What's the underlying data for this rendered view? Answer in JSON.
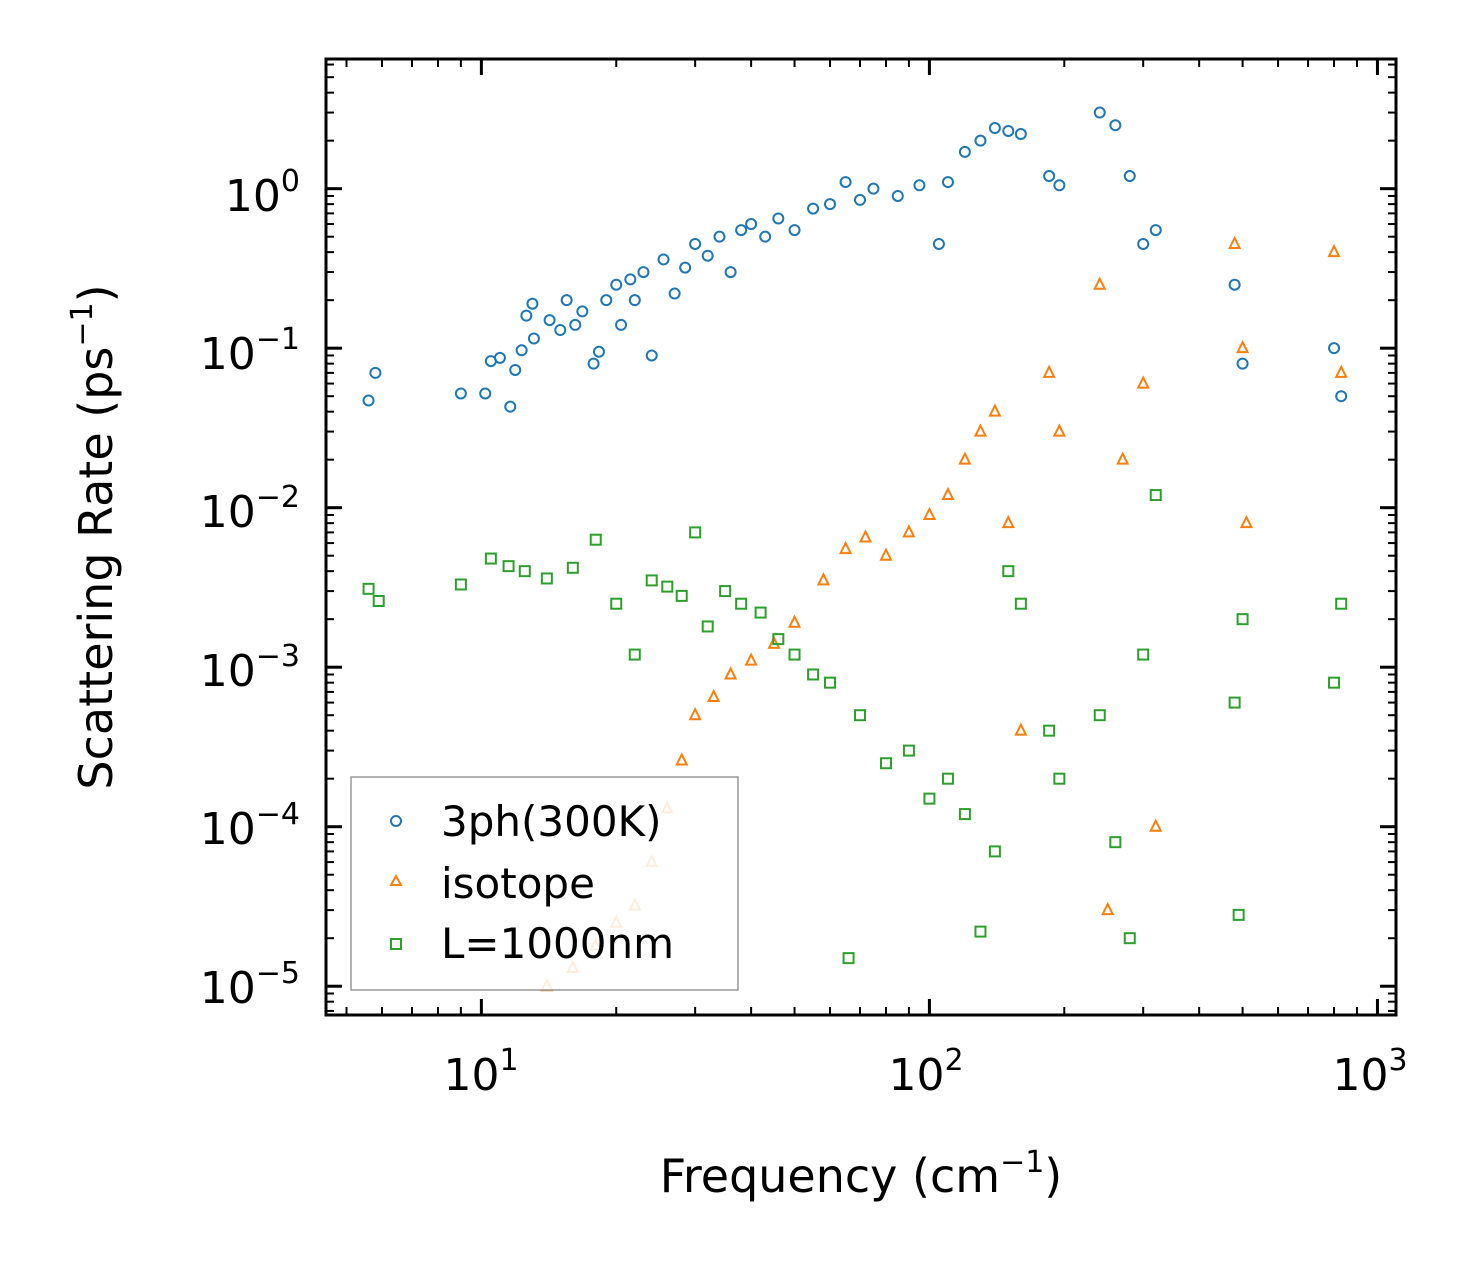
{
  "chart_data": {
    "type": "scatter",
    "title": "",
    "xscale": "log",
    "yscale": "log",
    "xlabel": "Frequency (cm",
    "xlabel_sup": "−1",
    "xlabel_end": ")",
    "ylabel": "Scattering Rate (ps",
    "ylabel_sup": "−1",
    "ylabel_end": ")",
    "xlim": [
      4.5,
      1100
    ],
    "ylim": [
      6.6e-06,
      6.5
    ],
    "x_ticks": [
      {
        "value": 10,
        "base": "10",
        "exp": "1"
      },
      {
        "value": 100,
        "base": "10",
        "exp": "2"
      },
      {
        "value": 1000,
        "base": "10",
        "exp": "3"
      }
    ],
    "y_ticks": [
      {
        "value": 1,
        "base": "10",
        "exp": "0"
      },
      {
        "value": 0.1,
        "base": "10",
        "exp": "−1"
      },
      {
        "value": 0.01,
        "base": "10",
        "exp": "−2"
      },
      {
        "value": 0.001,
        "base": "10",
        "exp": "−3"
      },
      {
        "value": 0.0001,
        "base": "10",
        "exp": "−4"
      },
      {
        "value": 1e-05,
        "base": "10",
        "exp": "−5"
      }
    ],
    "legend_position": "lower-left",
    "series": [
      {
        "name": "3ph(300K)",
        "marker": "circle",
        "color": "#1f77b4",
        "points": [
          [
            5.6,
            0.047
          ],
          [
            5.8,
            0.07
          ],
          [
            9.0,
            0.052
          ],
          [
            10.2,
            0.052
          ],
          [
            10.5,
            0.083
          ],
          [
            11.0,
            0.087
          ],
          [
            11.6,
            0.043
          ],
          [
            11.9,
            0.073
          ],
          [
            12.3,
            0.097
          ],
          [
            12.6,
            0.16
          ],
          [
            13.0,
            0.19
          ],
          [
            13.1,
            0.115
          ],
          [
            14.2,
            0.15
          ],
          [
            15.0,
            0.13
          ],
          [
            15.5,
            0.2
          ],
          [
            16.2,
            0.14
          ],
          [
            16.8,
            0.17
          ],
          [
            17.8,
            0.08
          ],
          [
            18.3,
            0.095
          ],
          [
            19.0,
            0.2
          ],
          [
            20.0,
            0.25
          ],
          [
            20.5,
            0.14
          ],
          [
            21.5,
            0.27
          ],
          [
            22.0,
            0.2
          ],
          [
            23.0,
            0.3
          ],
          [
            24.0,
            0.09
          ],
          [
            25.5,
            0.36
          ],
          [
            27.0,
            0.22
          ],
          [
            28.5,
            0.32
          ],
          [
            30.0,
            0.45
          ],
          [
            32.0,
            0.38
          ],
          [
            34.0,
            0.5
          ],
          [
            36.0,
            0.3
          ],
          [
            38.0,
            0.55
          ],
          [
            40.0,
            0.6
          ],
          [
            43.0,
            0.5
          ],
          [
            46.0,
            0.65
          ],
          [
            50.0,
            0.55
          ],
          [
            55.0,
            0.75
          ],
          [
            60.0,
            0.8
          ],
          [
            65.0,
            1.1
          ],
          [
            70.0,
            0.85
          ],
          [
            75.0,
            1.0
          ],
          [
            85.0,
            0.9
          ],
          [
            95.0,
            1.05
          ],
          [
            105.0,
            0.45
          ],
          [
            110.0,
            1.1
          ],
          [
            120.0,
            1.7
          ],
          [
            130.0,
            2.0
          ],
          [
            140.0,
            2.4
          ],
          [
            150.0,
            2.3
          ],
          [
            160.0,
            2.2
          ],
          [
            185.0,
            1.2
          ],
          [
            195.0,
            1.05
          ],
          [
            240.0,
            3.0
          ],
          [
            260.0,
            2.5
          ],
          [
            280.0,
            1.2
          ],
          [
            300.0,
            0.45
          ],
          [
            320.0,
            0.55
          ],
          [
            480.0,
            0.25
          ],
          [
            500.0,
            0.08
          ],
          [
            800.0,
            0.1
          ],
          [
            830.0,
            0.05
          ]
        ]
      },
      {
        "name": "isotope",
        "marker": "triangle",
        "color": "#ff7f0e",
        "points": [
          [
            14.0,
            1e-05
          ],
          [
            16.0,
            1.3e-05
          ],
          [
            18.0,
            1.8e-05
          ],
          [
            20.0,
            2.5e-05
          ],
          [
            22.0,
            3.2e-05
          ],
          [
            24.0,
            6e-05
          ],
          [
            26.0,
            0.00013
          ],
          [
            28.0,
            0.00026
          ],
          [
            30.0,
            0.0005
          ],
          [
            33.0,
            0.00065
          ],
          [
            36.0,
            0.0009
          ],
          [
            40.0,
            0.0011
          ],
          [
            45.0,
            0.0014
          ],
          [
            50.0,
            0.0019
          ],
          [
            58.0,
            0.0035
          ],
          [
            65.0,
            0.0055
          ],
          [
            72.0,
            0.0065
          ],
          [
            80.0,
            0.005
          ],
          [
            90.0,
            0.007
          ],
          [
            100.0,
            0.009
          ],
          [
            110.0,
            0.012
          ],
          [
            120.0,
            0.02
          ],
          [
            130.0,
            0.03
          ],
          [
            140.0,
            0.04
          ],
          [
            150.0,
            0.008
          ],
          [
            160.0,
            0.0004
          ],
          [
            185.0,
            0.07
          ],
          [
            195.0,
            0.03
          ],
          [
            240.0,
            0.25
          ],
          [
            250.0,
            3e-05
          ],
          [
            270.0,
            0.02
          ],
          [
            300.0,
            0.06
          ],
          [
            320.0,
            0.0001
          ],
          [
            480.0,
            0.45
          ],
          [
            500.0,
            0.1
          ],
          [
            510.0,
            0.008
          ],
          [
            800.0,
            0.4
          ],
          [
            830.0,
            0.07
          ]
        ]
      },
      {
        "name": "L=1000nm",
        "marker": "square",
        "color": "#2ca02c",
        "points": [
          [
            5.6,
            0.0031
          ],
          [
            5.9,
            0.0026
          ],
          [
            9.0,
            0.0033
          ],
          [
            10.5,
            0.0048
          ],
          [
            11.5,
            0.0043
          ],
          [
            12.5,
            0.004
          ],
          [
            14.0,
            0.0036
          ],
          [
            16.0,
            0.0042
          ],
          [
            18.0,
            0.0063
          ],
          [
            20.0,
            0.0025
          ],
          [
            22.0,
            0.0012
          ],
          [
            24.0,
            0.0035
          ],
          [
            26.0,
            0.0032
          ],
          [
            28.0,
            0.0028
          ],
          [
            30.0,
            0.007
          ],
          [
            32.0,
            0.0018
          ],
          [
            35.0,
            0.003
          ],
          [
            38.0,
            0.0025
          ],
          [
            42.0,
            0.0022
          ],
          [
            46.0,
            0.0015
          ],
          [
            50.0,
            0.0012
          ],
          [
            55.0,
            0.0009
          ],
          [
            60.0,
            0.0008
          ],
          [
            66.0,
            1.5e-05
          ],
          [
            70.0,
            0.0005
          ],
          [
            80.0,
            0.00025
          ],
          [
            90.0,
            0.0003
          ],
          [
            100.0,
            0.00015
          ],
          [
            110.0,
            0.0002
          ],
          [
            120.0,
            0.00012
          ],
          [
            130.0,
            2.2e-05
          ],
          [
            140.0,
            7e-05
          ],
          [
            150.0,
            0.004
          ],
          [
            160.0,
            0.0025
          ],
          [
            185.0,
            0.0004
          ],
          [
            195.0,
            0.0002
          ],
          [
            240.0,
            0.0005
          ],
          [
            260.0,
            8e-05
          ],
          [
            280.0,
            2e-05
          ],
          [
            300.0,
            0.0012
          ],
          [
            320.0,
            0.012
          ],
          [
            480.0,
            0.0006
          ],
          [
            490.0,
            2.8e-05
          ],
          [
            500.0,
            0.002
          ],
          [
            800.0,
            0.0008
          ],
          [
            830.0,
            0.0025
          ]
        ]
      }
    ]
  }
}
